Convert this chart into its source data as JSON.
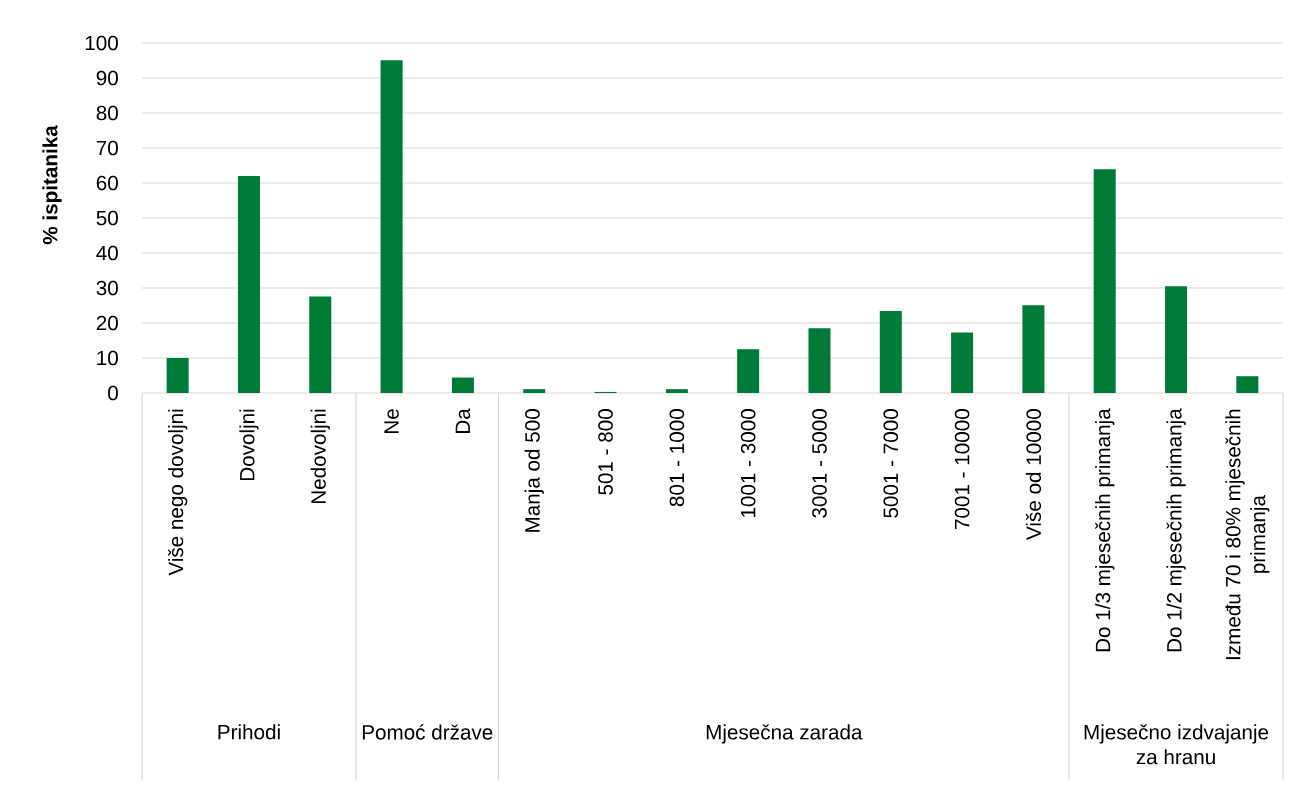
{
  "chart_data": {
    "type": "bar",
    "ylabel": "% ispitanika",
    "categories": [
      "Više nego dovoljni",
      "Dovoljni",
      "Nedovoljni",
      "Ne",
      "Da",
      "Manja od 500",
      "501 - 800",
      "801 - 1000",
      "1001 - 3000",
      "3001 - 5000",
      "5001 - 7000",
      "7001 - 10000",
      "Više od 10000",
      "Do 1/3 mjesečnih primanja",
      "Do 1/2 mjesečnih primanja",
      "Između 70 i 80% mjesečnih primanja"
    ],
    "values": [
      10,
      62,
      27.6,
      95.1,
      4.4,
      1.1,
      0.3,
      1.1,
      12.5,
      18.5,
      23.4,
      17.3,
      25.1,
      63.9,
      30.5,
      4.8
    ],
    "color": "#007a37",
    "ylim": [
      0,
      100
    ],
    "yticks": [
      0,
      10,
      20,
      30,
      40,
      50,
      60,
      70,
      80,
      90,
      100
    ],
    "grid": "y",
    "annotations": [
      "Prihodi",
      "Pomoć države",
      "Mjesečna zarada",
      "Mjesečno izdvajanje za hranu"
    ]
  }
}
